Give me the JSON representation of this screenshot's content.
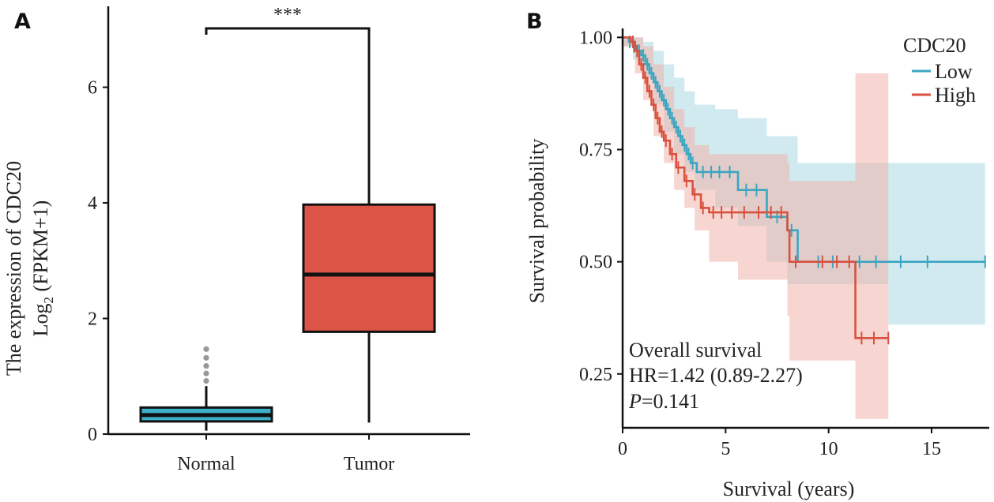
{
  "panels": {
    "a_label": "A",
    "b_label": "B"
  },
  "chart_data": [
    {
      "type": "box",
      "ylabel_line1": "The expression of CDC20",
      "ylabel_line2_prefix": "Log",
      "ylabel_line2_sub": "2",
      "ylabel_line2_suffix": " (FPKM+1)",
      "ylim": [
        0,
        7.4
      ],
      "yticks": [
        0,
        2,
        4,
        6
      ],
      "significance": "***",
      "groups": [
        {
          "name": "Normal",
          "color": "#3bb0c9",
          "min": 0.06,
          "q1": 0.22,
          "median": 0.33,
          "q3": 0.46,
          "max": 0.83,
          "outliers": [
            0.92,
            1.05,
            1.18,
            1.32,
            1.47
          ]
        },
        {
          "name": "Tumor",
          "color": "#dc5446",
          "min": 0.2,
          "q1": 1.77,
          "median": 2.76,
          "q3": 3.97,
          "max": 7.0,
          "outliers": []
        }
      ]
    },
    {
      "type": "line",
      "subtype": "kaplan-meier",
      "xlabel": "Survival (years)",
      "ylabel": "Survival probability",
      "xlim": [
        0,
        17.8
      ],
      "ylim": [
        0.13,
        1.02
      ],
      "xticks": [
        0,
        5,
        10,
        15
      ],
      "yticks": [
        0.25,
        0.5,
        0.75,
        1.0
      ],
      "ytick_labels": [
        "0.25",
        "0.50",
        "0.75",
        "1.00"
      ],
      "legend_title": "CDC20",
      "legend_position": "top-right",
      "series": [
        {
          "name": "Low",
          "color": "#3aa6c1",
          "band": "#a9d8e4",
          "steps": [
            [
              0,
              1.0
            ],
            [
              0.3,
              0.99
            ],
            [
              0.5,
              0.98
            ],
            [
              0.7,
              0.97
            ],
            [
              0.9,
              0.96
            ],
            [
              1.1,
              0.94
            ],
            [
              1.3,
              0.92
            ],
            [
              1.5,
              0.9
            ],
            [
              1.7,
              0.88
            ],
            [
              1.9,
              0.86
            ],
            [
              2.1,
              0.84
            ],
            [
              2.3,
              0.82
            ],
            [
              2.5,
              0.8
            ],
            [
              2.7,
              0.78
            ],
            [
              2.9,
              0.76
            ],
            [
              3.1,
              0.74
            ],
            [
              3.3,
              0.72
            ],
            [
              3.6,
              0.7
            ],
            [
              5.6,
              0.66
            ],
            [
              7.0,
              0.6
            ],
            [
              8.0,
              0.57
            ],
            [
              8.5,
              0.5
            ],
            [
              17.6,
              0.5
            ]
          ],
          "upper": [
            [
              0,
              1.0
            ],
            [
              0.5,
              1.0
            ],
            [
              1.0,
              0.99
            ],
            [
              1.5,
              0.97
            ],
            [
              2.0,
              0.94
            ],
            [
              2.5,
              0.91
            ],
            [
              3.0,
              0.88
            ],
            [
              3.5,
              0.85
            ],
            [
              4.5,
              0.84
            ],
            [
              5.6,
              0.82
            ],
            [
              7.0,
              0.78
            ],
            [
              8.5,
              0.72
            ],
            [
              12.9,
              0.72
            ],
            [
              17.6,
              0.68
            ]
          ],
          "lower": [
            [
              0,
              0.98
            ],
            [
              0.5,
              0.95
            ],
            [
              1.0,
              0.91
            ],
            [
              1.5,
              0.85
            ],
            [
              2.0,
              0.79
            ],
            [
              2.5,
              0.74
            ],
            [
              3.0,
              0.7
            ],
            [
              3.5,
              0.66
            ],
            [
              4.5,
              0.62
            ],
            [
              5.6,
              0.58
            ],
            [
              7.0,
              0.5
            ],
            [
              8.0,
              0.45
            ],
            [
              12.9,
              0.36
            ],
            [
              17.6,
              0.36
            ]
          ],
          "censors": [
            [
              0.35,
              0.99
            ],
            [
              0.55,
              0.98
            ],
            [
              0.8,
              0.97
            ],
            [
              1.0,
              0.96
            ],
            [
              1.2,
              0.94
            ],
            [
              1.4,
              0.92
            ],
            [
              1.6,
              0.9
            ],
            [
              1.8,
              0.88
            ],
            [
              2.0,
              0.86
            ],
            [
              2.2,
              0.84
            ],
            [
              2.4,
              0.82
            ],
            [
              2.6,
              0.8
            ],
            [
              2.8,
              0.78
            ],
            [
              3.0,
              0.76
            ],
            [
              3.2,
              0.74
            ],
            [
              3.4,
              0.72
            ],
            [
              3.9,
              0.7
            ],
            [
              4.3,
              0.7
            ],
            [
              4.7,
              0.7
            ],
            [
              5.2,
              0.7
            ],
            [
              6.0,
              0.66
            ],
            [
              6.5,
              0.66
            ],
            [
              7.5,
              0.6
            ],
            [
              8.2,
              0.57
            ],
            [
              9.5,
              0.5
            ],
            [
              10.2,
              0.5
            ],
            [
              11.5,
              0.5
            ],
            [
              12.3,
              0.5
            ],
            [
              13.5,
              0.5
            ],
            [
              14.8,
              0.5
            ],
            [
              17.6,
              0.5
            ]
          ]
        },
        {
          "name": "High",
          "color": "#d9513f",
          "band": "#f1b2aa",
          "steps": [
            [
              0,
              1.0
            ],
            [
              0.4,
              0.99
            ],
            [
              0.6,
              0.97
            ],
            [
              0.8,
              0.94
            ],
            [
              1.0,
              0.91
            ],
            [
              1.2,
              0.88
            ],
            [
              1.4,
              0.85
            ],
            [
              1.6,
              0.82
            ],
            [
              1.8,
              0.79
            ],
            [
              2.0,
              0.77
            ],
            [
              2.3,
              0.74
            ],
            [
              2.6,
              0.71
            ],
            [
              3.0,
              0.68
            ],
            [
              3.4,
              0.65
            ],
            [
              3.8,
              0.62
            ],
            [
              4.2,
              0.61
            ],
            [
              8.0,
              0.57
            ],
            [
              8.1,
              0.5
            ],
            [
              11.2,
              0.5
            ],
            [
              11.3,
              0.33
            ],
            [
              12.9,
              0.33
            ]
          ],
          "upper": [
            [
              0,
              1.0
            ],
            [
              0.6,
              1.0
            ],
            [
              1.0,
              0.98
            ],
            [
              1.5,
              0.94
            ],
            [
              2.0,
              0.89
            ],
            [
              2.5,
              0.84
            ],
            [
              3.0,
              0.8
            ],
            [
              3.5,
              0.76
            ],
            [
              4.2,
              0.74
            ],
            [
              8.0,
              0.72
            ],
            [
              8.1,
              0.68
            ],
            [
              11.2,
              0.68
            ],
            [
              11.3,
              0.92
            ],
            [
              12.9,
              0.92
            ]
          ],
          "lower": [
            [
              0,
              0.98
            ],
            [
              0.6,
              0.92
            ],
            [
              1.0,
              0.86
            ],
            [
              1.5,
              0.78
            ],
            [
              2.0,
              0.72
            ],
            [
              2.5,
              0.66
            ],
            [
              3.0,
              0.62
            ],
            [
              3.5,
              0.57
            ],
            [
              4.2,
              0.5
            ],
            [
              5.6,
              0.46
            ],
            [
              8.0,
              0.38
            ],
            [
              8.1,
              0.28
            ],
            [
              11.2,
              0.28
            ],
            [
              11.3,
              0.15
            ],
            [
              12.9,
              0.15
            ]
          ],
          "censors": [
            [
              0.5,
              0.99
            ],
            [
              0.7,
              0.97
            ],
            [
              0.9,
              0.94
            ],
            [
              1.1,
              0.91
            ],
            [
              1.3,
              0.88
            ],
            [
              1.5,
              0.85
            ],
            [
              1.7,
              0.82
            ],
            [
              1.9,
              0.79
            ],
            [
              2.1,
              0.77
            ],
            [
              2.4,
              0.74
            ],
            [
              2.7,
              0.71
            ],
            [
              3.1,
              0.68
            ],
            [
              3.5,
              0.65
            ],
            [
              3.9,
              0.62
            ],
            [
              4.4,
              0.61
            ],
            [
              4.8,
              0.61
            ],
            [
              5.3,
              0.61
            ],
            [
              5.9,
              0.61
            ],
            [
              6.6,
              0.61
            ],
            [
              7.2,
              0.61
            ],
            [
              7.7,
              0.61
            ],
            [
              8.4,
              0.5
            ],
            [
              9.7,
              0.5
            ],
            [
              10.4,
              0.5
            ],
            [
              11.0,
              0.5
            ],
            [
              11.6,
              0.33
            ],
            [
              12.2,
              0.33
            ],
            [
              12.9,
              0.33
            ]
          ]
        }
      ],
      "annotation": {
        "line1": "Overall survival",
        "line2": "HR=1.42 (0.89-2.27)",
        "line3_italic": "P",
        "line3_rest": "=0.141"
      }
    }
  ]
}
